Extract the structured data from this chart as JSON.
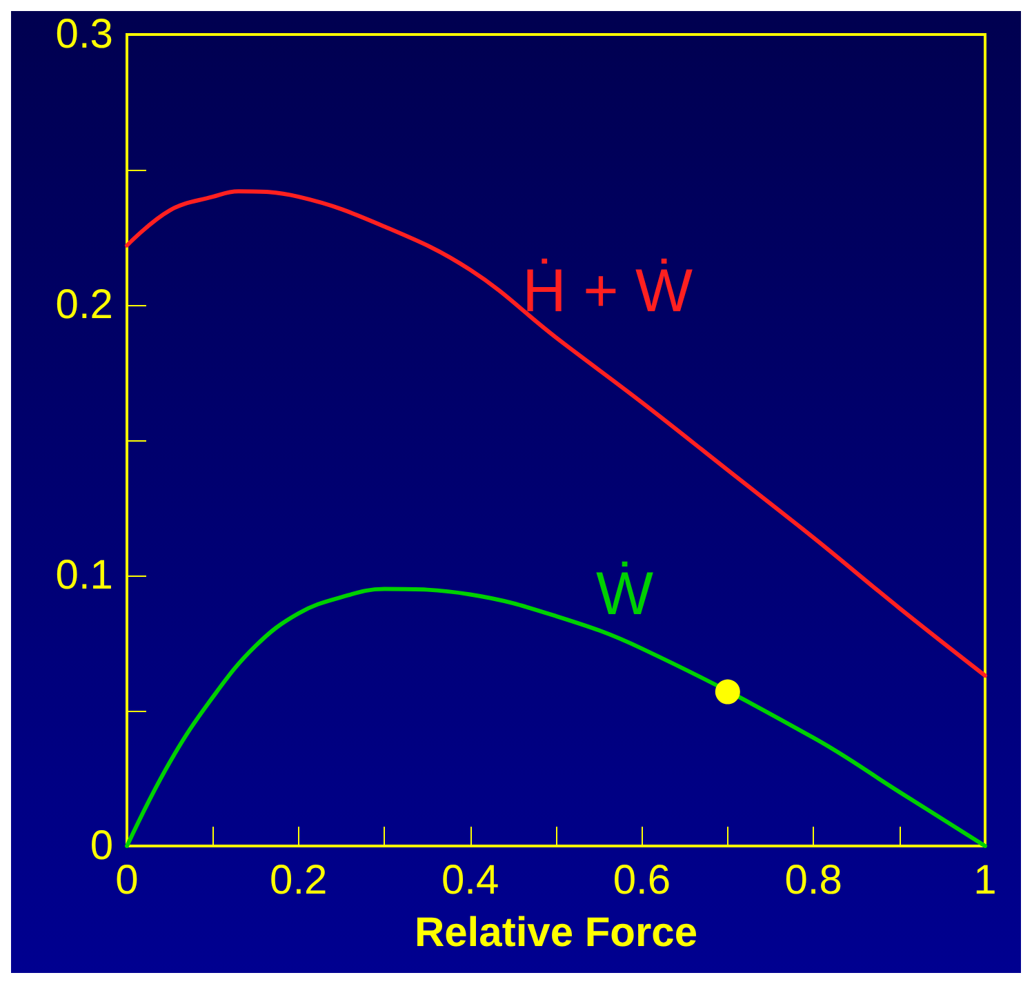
{
  "chart_data": {
    "type": "line",
    "xlabel": "Relative Force",
    "xlim": [
      0,
      1
    ],
    "ylim": [
      0,
      0.3
    ],
    "xticks": [
      0,
      {
        "value": 0.1,
        "label": null
      },
      0.2,
      {
        "value": 0.3,
        "label": null
      },
      0.4,
      {
        "value": 0.5,
        "label": null
      },
      0.6,
      {
        "value": 0.7,
        "label": null
      },
      0.8,
      {
        "value": 0.9,
        "label": null
      },
      1
    ],
    "yticks": [
      0,
      {
        "value": 0.05,
        "label": null
      },
      0.1,
      {
        "value": 0.15,
        "label": null
      },
      0.2,
      {
        "value": 0.25,
        "label": null
      },
      0.3
    ],
    "grid": false,
    "legend": false,
    "marker": "none",
    "line_style": "solid",
    "series": [
      {
        "name": "Ḣ + Ẇ",
        "color": "#ff2020",
        "x": [
          0,
          0.05,
          0.1,
          0.13,
          0.2,
          0.3,
          0.4,
          0.5,
          0.6,
          0.7,
          0.8,
          0.9,
          1
        ],
        "values": [
          0.222,
          0.235,
          0.24,
          0.242,
          0.24,
          0.229,
          0.213,
          0.188,
          0.164,
          0.139,
          0.114,
          0.088,
          0.063
        ]
      },
      {
        "name": "Ẇ",
        "color": "#00d000",
        "x": [
          0,
          0.05,
          0.1,
          0.15,
          0.2,
          0.25,
          0.3,
          0.4,
          0.5,
          0.6,
          0.8,
          0.9,
          1
        ],
        "values": [
          0,
          0.031,
          0.055,
          0.074,
          0.086,
          0.092,
          0.095,
          0.093,
          0.085,
          0.073,
          0.04,
          0.02,
          0
        ]
      },
      {
        "type": "scatter",
        "marker": "circle",
        "color": "#ffff00",
        "x": [
          0.7
        ],
        "values": [
          0.057
        ]
      }
    ]
  }
}
